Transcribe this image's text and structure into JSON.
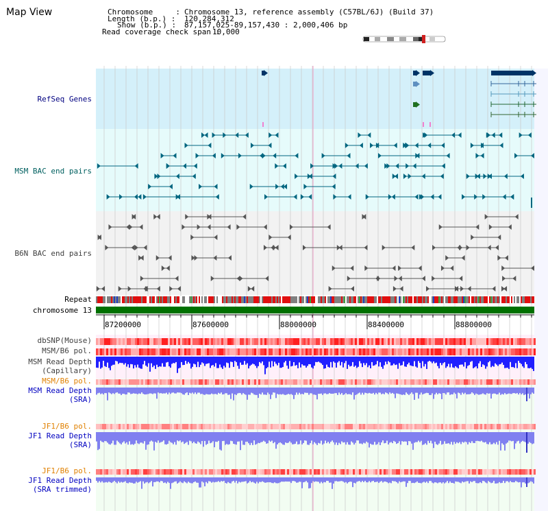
{
  "header": {
    "title": "Map View",
    "chromosome_label": "Chromosome     :",
    "chromosome_value": "Chromosome 13, reference assembly (C57BL/6J) (Build 37)",
    "length_label": "Length (b.p.) :",
    "length_value": "120,284,312",
    "show_label": "Show (b.p.) :",
    "show_value": "87,157,025-89,157,430 : 2,000,406 bp",
    "read_span_label": "Read coverage check span :",
    "read_span_value": "10,000"
  },
  "tracks": {
    "refseq": {
      "label": "RefSeq Genes",
      "color": "#000080"
    },
    "msm_bac": {
      "label": "MSM BAC end pairs",
      "color": "#006060"
    },
    "b6n_bac": {
      "label": "B6N BAC end pairs",
      "color": "#404040"
    },
    "repeat": {
      "label": "Repeat",
      "color": "#000000"
    },
    "chromosome": {
      "label": "chromosome 13",
      "color": "#000000"
    },
    "dbsnp": {
      "label": "dbSNP(Mouse)",
      "color": "#404040"
    },
    "msm_b6_pol_1": {
      "label": "MSM/B6 pol.",
      "color": "#404040"
    },
    "msm_read_depth_cap": {
      "label": "MSM Read Depth",
      "sub": "(Capillary)",
      "color": "#404040"
    },
    "msm_b6_pol_2": {
      "label": "MSM/B6 pol.",
      "color": "#e08000"
    },
    "msm_read_depth_sra": {
      "label": "MSM Read Depth",
      "sub": "(SRA)",
      "color": "#0000c0"
    },
    "jf1_b6_pol_1": {
      "label": "JF1/B6 pol.",
      "color": "#e08000"
    },
    "jf1_read_depth_sra": {
      "label": "JF1 Read Depth",
      "sub": "(SRA)",
      "color": "#0000c0"
    },
    "jf1_b6_pol_2": {
      "label": "JF1/B6 pol.",
      "color": "#e08000"
    },
    "jf1_read_depth_trim": {
      "label": "JF1 Read Depth",
      "sub": "(SRA trimmed)",
      "color": "#0000c0"
    }
  },
  "ruler": {
    "ticks": [
      "87200000",
      "87600000",
      "88000000",
      "88400000",
      "88800000"
    ]
  },
  "colors": {
    "refseq_bg": "#d4f0fa",
    "bac_bg": "#e6fbfb",
    "b6n_bg": "#f2f2f2",
    "pink_bg": "#fff0fa",
    "green_bg": "#f2fdf2",
    "chromosome_bar": "#007000",
    "gene": "#003366",
    "msm_feature": "#006680",
    "b6n_feature": "#555555",
    "depth_blue": "#2020ff",
    "depth_light": "#8080f0"
  }
}
